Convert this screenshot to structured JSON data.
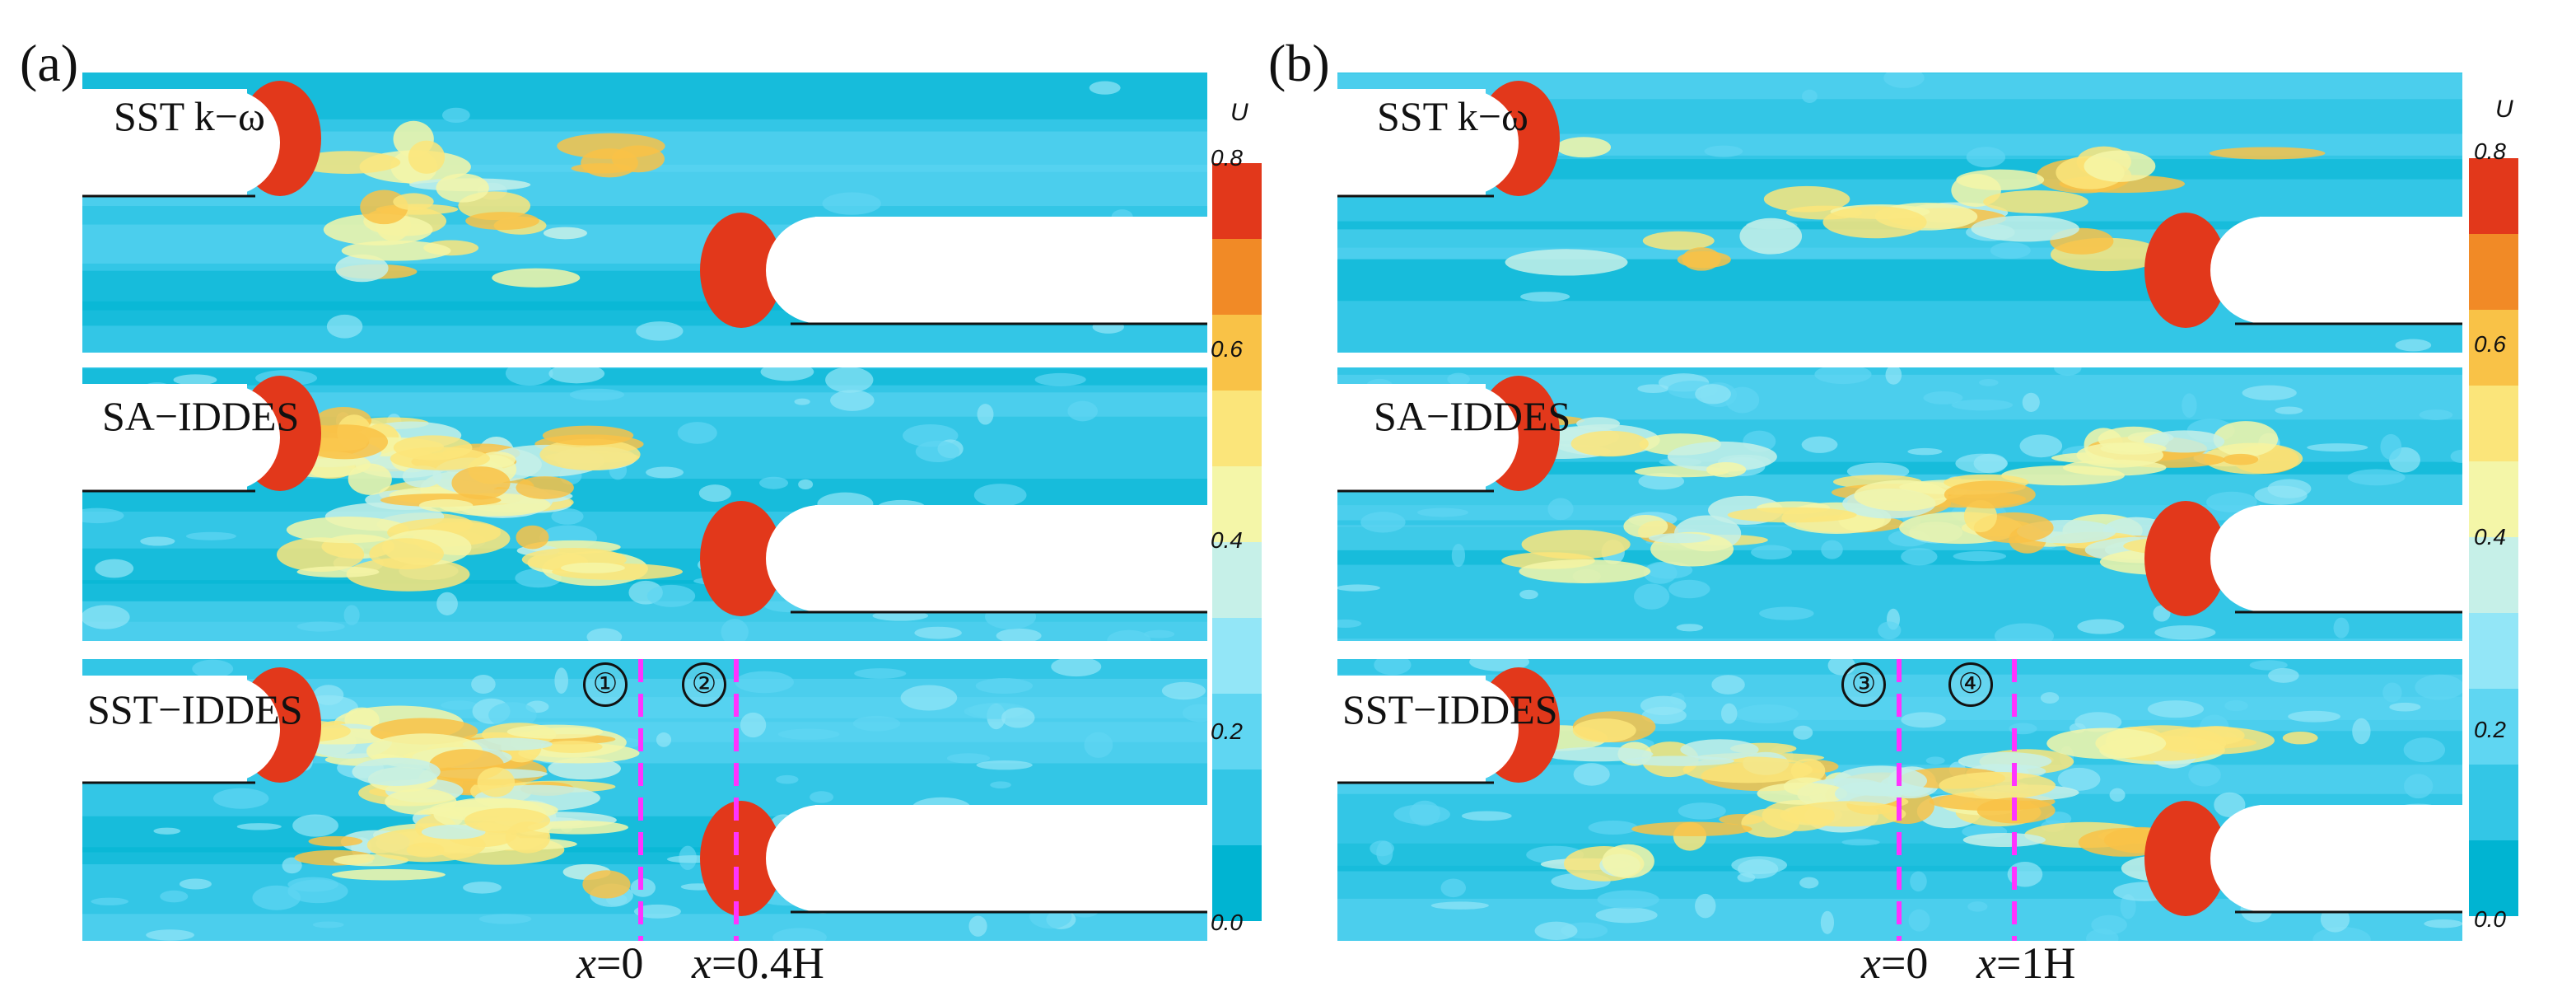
{
  "panels": [
    {
      "letter": "(a)",
      "rows": [
        "SST k−ω",
        "SA−IDDES",
        "SST−IDDES"
      ],
      "markers": [
        "①",
        "②"
      ],
      "xlabels": [
        {
          "var": "x",
          "val": "=0"
        },
        {
          "var": "x",
          "val": "=0.4H"
        }
      ]
    },
    {
      "letter": "(b)",
      "rows": [
        "SST k−ω",
        "SA−IDDES",
        "SST−IDDES"
      ],
      "markers": [
        "③",
        "④"
      ],
      "xlabels": [
        {
          "var": "x",
          "val": "=0"
        },
        {
          "var": "x",
          "val": "=1H"
        }
      ]
    }
  ],
  "colorbar": {
    "title": "U",
    "ticks": [
      "0.8",
      "0.6",
      "0.4",
      "0.2",
      "0.0"
    ],
    "colors": [
      "#00b4d2",
      "#33c6e6",
      "#5fd6f2",
      "#93e6f7",
      "#c6f0e8",
      "#f4f6a8",
      "#fbe57a",
      "#f9c247",
      "#f18a26",
      "#e2381b"
    ]
  },
  "line_color": "#ff33ff"
}
